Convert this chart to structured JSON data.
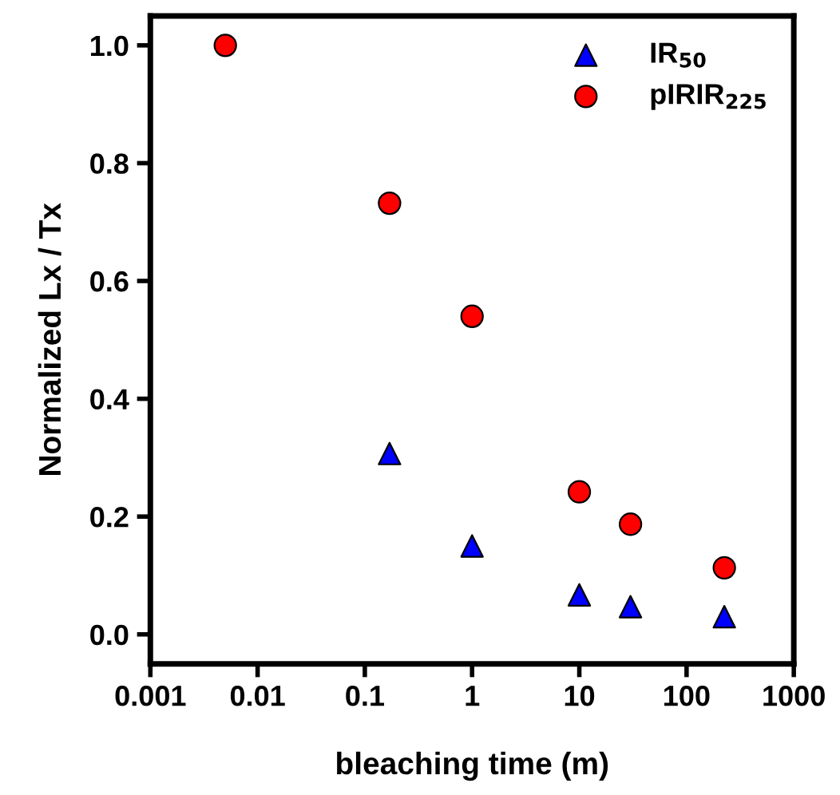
{
  "chart_data": {
    "type": "scatter",
    "xlabel": "bleaching time (m)",
    "ylabel": "Normalized Lx / Tx",
    "log": "x",
    "x": [
      0.005,
      0.17,
      1,
      10,
      30,
      225
    ],
    "series": [
      {
        "name": "IR$_{50}$",
        "color": "#0000ff",
        "marker": "triangle",
        "values": [
          null,
          0.307,
          0.15,
          0.067,
          0.047,
          0.03
        ]
      },
      {
        "name": "pIRIR$_{225}$",
        "color": "#ff0000",
        "marker": "circle",
        "values": [
          1.0,
          0.732,
          0.54,
          0.242,
          0.187,
          0.113
        ]
      }
    ],
    "xlim": [
      0.001,
      1000
    ],
    "xticks": [
      0.001,
      0.01,
      0.1,
      1,
      10,
      100,
      1000
    ],
    "ylim": [
      -0.05,
      1.05
    ],
    "yticks": [
      {
        "value": 0,
        "label": "0.0"
      },
      0.2,
      0.4,
      0.6,
      0.8,
      {
        "value": 1,
        "label": "1.0"
      }
    ],
    "grid": false,
    "legend": "top right"
  }
}
